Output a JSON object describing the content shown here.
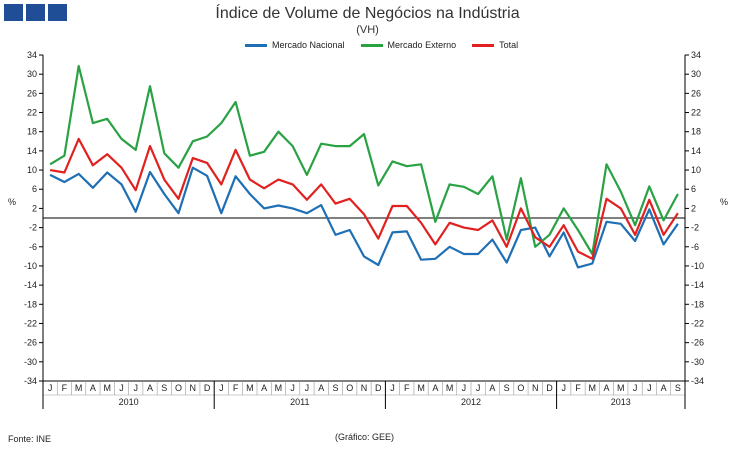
{
  "header": {
    "title": "Índice de Volume de Negócios na Indústria",
    "subtitle": "(VH)"
  },
  "footer": {
    "source": "Fonte: INE",
    "credit": "(Gráfico: GEE)"
  },
  "colors": {
    "logo": "#1f4e96",
    "nacional": "#1f6fb5",
    "externo": "#2aa244",
    "total": "#e0211f"
  },
  "chart_data": {
    "type": "line",
    "title": "Índice de Volume de Negócios na Indústria",
    "subtitle": "(VH)",
    "ylabel": "%",
    "ylabel_right": "%",
    "ylim": [
      -34,
      34
    ],
    "yticks": [
      34,
      30,
      26,
      22,
      18,
      14,
      10,
      6,
      2,
      -2,
      -6,
      -10,
      -14,
      -18,
      -22,
      -26,
      -30,
      -34
    ],
    "grid": false,
    "legend": "top-center",
    "months": [
      "J",
      "F",
      "M",
      "A",
      "M",
      "J",
      "J",
      "A",
      "S",
      "O",
      "N",
      "D",
      "J",
      "F",
      "M",
      "A",
      "M",
      "J",
      "J",
      "A",
      "S",
      "O",
      "N",
      "D",
      "J",
      "F",
      "M",
      "A",
      "M",
      "J",
      "J",
      "A",
      "S",
      "O",
      "N",
      "D",
      "J",
      "F",
      "M",
      "A",
      "M",
      "J",
      "J",
      "A",
      "S"
    ],
    "years": [
      "2010",
      "2011",
      "2012",
      "2013"
    ],
    "series": [
      {
        "name": "Mercado Nacional",
        "color": "#1f6fb5",
        "values": [
          9,
          7.5,
          9.2,
          6.3,
          9.5,
          7,
          1.3,
          9.6,
          5,
          1,
          10.5,
          8.8,
          1,
          8.7,
          5,
          2,
          2.6,
          2,
          1,
          2.7,
          -3.5,
          -2.5,
          -8,
          -9.8,
          -3,
          -2.8,
          -8.7,
          -8.5,
          -6,
          -7.5,
          -7.5,
          -4.5,
          -9.3,
          -2.5,
          -2,
          -8,
          -3,
          -10.3,
          -9.5,
          -0.8,
          -1.2,
          -4.8,
          1.8,
          -5.5,
          -1.2
        ]
      },
      {
        "name": "Mercado Externo",
        "color": "#2aa244",
        "values": [
          11.2,
          13,
          31.7,
          19.8,
          20.7,
          16.5,
          14.2,
          27.5,
          13.5,
          10.5,
          16,
          17,
          19.8,
          24.2,
          13,
          13.8,
          18,
          15,
          9,
          15.5,
          15,
          15,
          17.5,
          6.8,
          11.8,
          10.8,
          11.2,
          -0.8,
          7,
          6.5,
          5,
          8.7,
          -4.5,
          8.3,
          -6,
          -3.5,
          2,
          -2.5,
          -7.5,
          11.2,
          5.5,
          -1.5,
          6.6,
          -0.5,
          5
        ]
      },
      {
        "name": "Total",
        "color": "#e0211f",
        "values": [
          10,
          9.5,
          16.5,
          11,
          13.3,
          10.5,
          5.8,
          15,
          8,
          4,
          12.5,
          11.5,
          7,
          14.2,
          8,
          6.2,
          8,
          7,
          3.8,
          7,
          3,
          4,
          0.8,
          -4.3,
          2.5,
          2.5,
          -1,
          -5.5,
          -1,
          -2,
          -2.5,
          -0.5,
          -6,
          2,
          -4,
          -6,
          -1.5,
          -7,
          -8.5,
          4,
          2,
          -3.5,
          3.8,
          -3.5,
          1
        ]
      }
    ]
  }
}
